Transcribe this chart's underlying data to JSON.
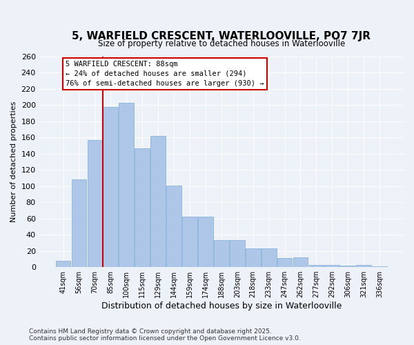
{
  "title": "5, WARFIELD CRESCENT, WATERLOOVILLE, PO7 7JR",
  "subtitle": "Size of property relative to detached houses in Waterlooville",
  "xlabel": "Distribution of detached houses by size in Waterlooville",
  "ylabel": "Number of detached properties",
  "categories": [
    "41sqm",
    "56sqm",
    "70sqm",
    "85sqm",
    "100sqm",
    "115sqm",
    "129sqm",
    "144sqm",
    "159sqm",
    "174sqm",
    "188sqm",
    "203sqm",
    "218sqm",
    "233sqm",
    "247sqm",
    "262sqm",
    "277sqm",
    "292sqm",
    "306sqm",
    "321sqm",
    "336sqm"
  ],
  "values": [
    8,
    108,
    157,
    198,
    203,
    147,
    162,
    101,
    62,
    62,
    33,
    33,
    23,
    23,
    11,
    12,
    3,
    3,
    2,
    3,
    1
  ],
  "bar_color": "#aec6e8",
  "bar_edge_color": "#7aacd4",
  "red_line_index": 3,
  "red_line_color": "#cc0000",
  "annotation_line1": "5 WARFIELD CRESCENT: 88sqm",
  "annotation_line2": "← 24% of detached houses are smaller (294)",
  "annotation_line3": "76% of semi-detached houses are larger (930) →",
  "annotation_box_edgecolor": "#cc0000",
  "ylim": [
    0,
    260
  ],
  "yticks": [
    0,
    20,
    40,
    60,
    80,
    100,
    120,
    140,
    160,
    180,
    200,
    220,
    240,
    260
  ],
  "background_color": "#edf1f8",
  "grid_color": "#ffffff",
  "footer_line1": "Contains HM Land Registry data © Crown copyright and database right 2025.",
  "footer_line2": "Contains public sector information licensed under the Open Government Licence v3.0."
}
